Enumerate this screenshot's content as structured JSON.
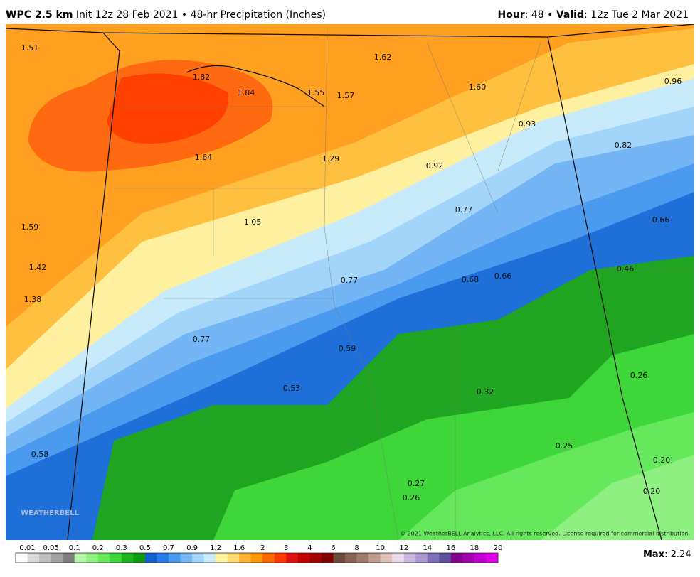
{
  "header": {
    "model": "WPC 2.5 km",
    "init": "Init 12z 28 Feb 2021",
    "product": "48-hr Precipitation (Inches)",
    "hour_label": "Hour",
    "hour": ": 48",
    "valid_label": "Valid",
    "valid": ": 12z Tue 2 Mar 2021"
  },
  "map": {
    "labels": [
      "1.51",
      "1.82",
      "1.84",
      "1.55",
      "1.57",
      "1.62",
      "1.60",
      "0.96",
      "0.93",
      "0.82",
      "1.64",
      "1.29",
      "0.92",
      "0.77",
      "0.66",
      "1.59",
      "1.05",
      "1.42",
      "1.38",
      "0.46",
      "0.77",
      "0.68",
      "0.66",
      "0.77",
      "0.59",
      "0.53",
      "0.32",
      "0.26",
      "0.25",
      "0.58",
      "0.20",
      "0.27",
      "0.26",
      "0.20"
    ],
    "copyright": "© 2021 WeatherBELL Analytics, LLC. All rights reserved. License required for commercial distribution.",
    "logo": "WEATHERBELL"
  },
  "legend": {
    "ticks": [
      "0.01",
      "0.05",
      "0.1",
      "0.2",
      "0.3",
      "0.5",
      "0.7",
      "0.9",
      "1.2",
      "1.6",
      "2",
      "3",
      "4",
      "6",
      "8",
      "10",
      "12",
      "14",
      "16",
      "18",
      "20"
    ],
    "colors": [
      "#ffffff",
      "#d9d9d9",
      "#bdbdbd",
      "#a0a0a0",
      "#7f7f7f",
      "#b5f5a8",
      "#8ef080",
      "#66e85c",
      "#3fd63a",
      "#1fb51f",
      "#0f9a0f",
      "#1560d0",
      "#2a7de8",
      "#4a9af0",
      "#73b5f5",
      "#a3d4fa",
      "#c8ebfc",
      "#fff3a0",
      "#ffd870",
      "#ffb030",
      "#ff9500",
      "#ff6a00",
      "#ff3a00",
      "#e01010",
      "#c00000",
      "#a00000",
      "#800000",
      "#6e4a3a",
      "#8a6450",
      "#a07c6c",
      "#c09a8c",
      "#dcc0b4",
      "#e8d8e8",
      "#c8b8e0",
      "#a898d0",
      "#8070b8",
      "#6050a0",
      "#80008a",
      "#a000b0",
      "#c000d0",
      "#e000e8"
    ],
    "max_label": "Max",
    "max": ": 2.24"
  }
}
